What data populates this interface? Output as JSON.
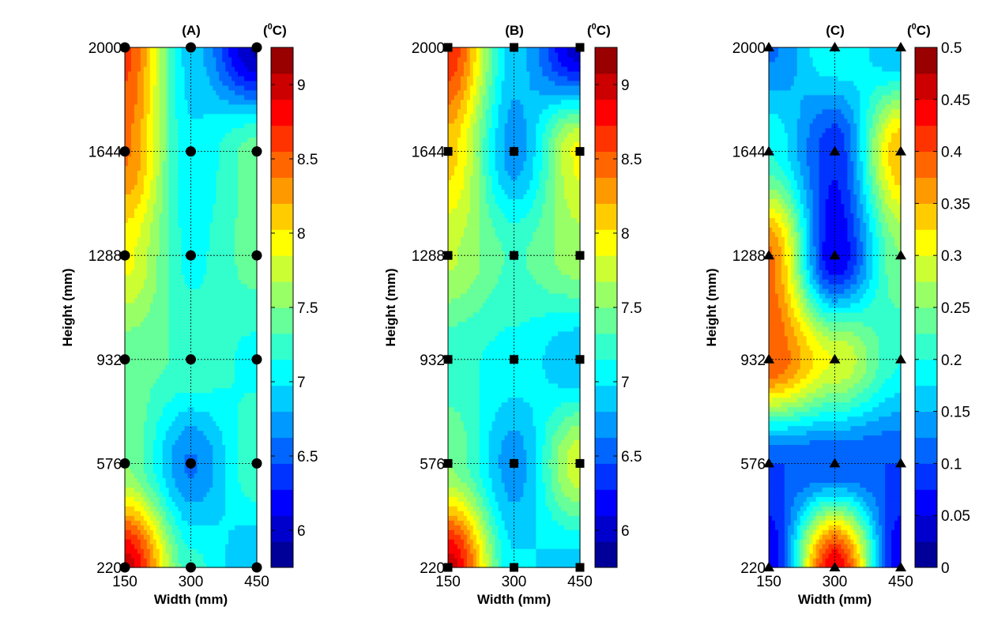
{
  "chart_data": [
    {
      "type": "heatmap",
      "title": "(A)",
      "colorbar_label": "(0C)",
      "xlabel": "Width (mm)",
      "ylabel": "Height (mm)",
      "x": [
        150,
        300,
        450
      ],
      "y": [
        220,
        576,
        932,
        1288,
        1644,
        2000
      ],
      "xticks": [
        "150",
        "300",
        "450"
      ],
      "yticks": [
        "220",
        "576",
        "932",
        "1288",
        "1644",
        "2000"
      ],
      "values": [
        [
          9.0,
          7.2,
          6.8
        ],
        [
          7.5,
          6.6,
          7.3
        ],
        [
          7.4,
          7.3,
          7.1
        ],
        [
          7.9,
          7.1,
          7.4
        ],
        [
          8.4,
          7.0,
          7.4
        ],
        [
          8.6,
          6.9,
          5.9
        ]
      ],
      "clim": [
        5.75,
        9.25
      ],
      "cticks": [
        "6",
        "6.5",
        "7",
        "7.5",
        "8",
        "8.5",
        "9"
      ],
      "cticks_values": [
        6,
        6.5,
        7,
        7.5,
        8,
        8.5,
        9
      ],
      "marker": "circle",
      "grid": true,
      "colormap": "jet"
    },
    {
      "type": "heatmap",
      "title": "(B)",
      "colorbar_label": "(0C)",
      "xlabel": "Width (mm)",
      "ylabel": "Height (mm)",
      "x": [
        150,
        300,
        450
      ],
      "y": [
        220,
        576,
        932,
        1288,
        1644,
        2000
      ],
      "xticks": [
        "150",
        "300",
        "450"
      ],
      "yticks": [
        "220",
        "576",
        "932",
        "1288",
        "1644",
        "2000"
      ],
      "values": [
        [
          9.0,
          7.0,
          6.9
        ],
        [
          7.5,
          6.7,
          7.8
        ],
        [
          7.2,
          7.1,
          6.8
        ],
        [
          7.7,
          7.3,
          7.6
        ],
        [
          8.1,
          6.7,
          7.9
        ],
        [
          8.7,
          6.9,
          6.0
        ]
      ],
      "clim": [
        5.75,
        9.25
      ],
      "cticks": [
        "6",
        "6.5",
        "7",
        "7.5",
        "8",
        "8.5",
        "9"
      ],
      "cticks_values": [
        6,
        6.5,
        7,
        7.5,
        8,
        8.5,
        9
      ],
      "marker": "square",
      "grid": true,
      "colormap": "jet"
    },
    {
      "type": "heatmap",
      "title": "(C)",
      "colorbar_label": "(0C)",
      "xlabel": "Width (mm)",
      "ylabel": "Height (mm)",
      "x": [
        150,
        300,
        450
      ],
      "y": [
        220,
        576,
        932,
        1288,
        1644,
        2000
      ],
      "xticks": [
        "150",
        "300",
        "450"
      ],
      "yticks": [
        "220",
        "576",
        "932",
        "1288",
        "1644",
        "2000"
      ],
      "values": [
        [
          0.05,
          0.45,
          0.05
        ],
        [
          0.1,
          0.1,
          0.1
        ],
        [
          0.4,
          0.3,
          0.2
        ],
        [
          0.38,
          0.05,
          0.25
        ],
        [
          0.2,
          0.08,
          0.35
        ],
        [
          0.12,
          0.2,
          0.15
        ]
      ],
      "clim": [
        0,
        0.5
      ],
      "cticks": [
        "0",
        "0.05",
        "0.1",
        "0.15",
        "0.2",
        "0.25",
        "0.3",
        "0.35",
        "0.4",
        "0.45",
        "0.5"
      ],
      "cticks_values": [
        0,
        0.05,
        0.1,
        0.15,
        0.2,
        0.25,
        0.3,
        0.35,
        0.4,
        0.45,
        0.5
      ],
      "marker": "triangle",
      "grid": true,
      "colormap": "jet"
    }
  ]
}
